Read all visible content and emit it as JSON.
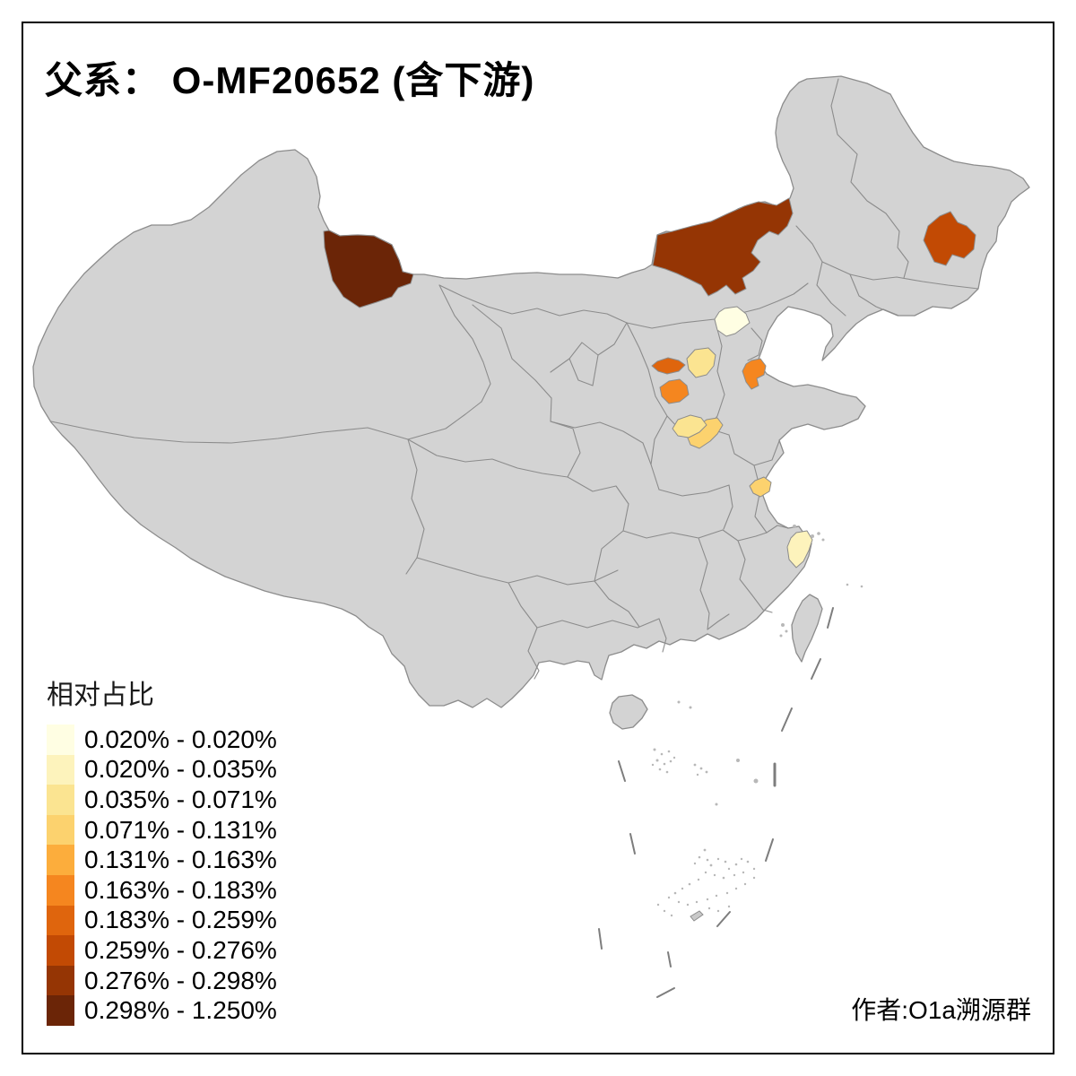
{
  "title": "父系： O-MF20652 (含下游)",
  "credit": "作者:O1a溯源群",
  "legend": {
    "title": "相对占比",
    "classes": [
      {
        "label": "0.020% - 0.020%",
        "color": "#FFFEE3"
      },
      {
        "label": "0.020% - 0.035%",
        "color": "#FDF3BC"
      },
      {
        "label": "0.035% - 0.071%",
        "color": "#FBE491"
      },
      {
        "label": "0.071% - 0.131%",
        "color": "#FCD26E"
      },
      {
        "label": "0.131% - 0.163%",
        "color": "#FCAD3C"
      },
      {
        "label": "0.163% - 0.183%",
        "color": "#F5861F"
      },
      {
        "label": "0.183% - 0.259%",
        "color": "#DF650D"
      },
      {
        "label": "0.259% - 0.276%",
        "color": "#C24A04"
      },
      {
        "label": "0.276% - 0.298%",
        "color": "#953504"
      },
      {
        "label": "0.298% - 1.250%",
        "color": "#6B2507"
      }
    ]
  },
  "map": {
    "base_fill": "#D3D3D3",
    "border_color": "#8C8C8C",
    "background": "#FFFFFF",
    "regions": [
      {
        "name": "tacheng-xinjiang",
        "class_index": 9,
        "range": "0.298% - 1.250%"
      },
      {
        "name": "central-inner-mongolia",
        "class_index": 8,
        "range": "0.276% - 0.298%"
      },
      {
        "name": "harbin-heilongjiang",
        "class_index": 7,
        "range": "0.259% - 0.276%"
      },
      {
        "name": "beijing",
        "class_index": 0,
        "range": "0.020% - 0.020%"
      },
      {
        "name": "luliang-shanxi",
        "class_index": 6,
        "range": "0.183% - 0.259%"
      },
      {
        "name": "central-shanxi",
        "class_index": 2,
        "range": "0.035% - 0.071%"
      },
      {
        "name": "south-shanxi",
        "class_index": 5,
        "range": "0.163% - 0.183%"
      },
      {
        "name": "shijiazhuang-hebei",
        "class_index": 5,
        "range": "0.163% - 0.183%"
      },
      {
        "name": "north-henan-west",
        "class_index": 2,
        "range": "0.035% - 0.071%"
      },
      {
        "name": "north-henan-east",
        "class_index": 3,
        "range": "0.071% - 0.131%"
      },
      {
        "name": "central-anhui",
        "class_index": 3,
        "range": "0.071% - 0.131%"
      },
      {
        "name": "coastal-zhejiang",
        "class_index": 1,
        "range": "0.020% - 0.035%"
      }
    ]
  }
}
